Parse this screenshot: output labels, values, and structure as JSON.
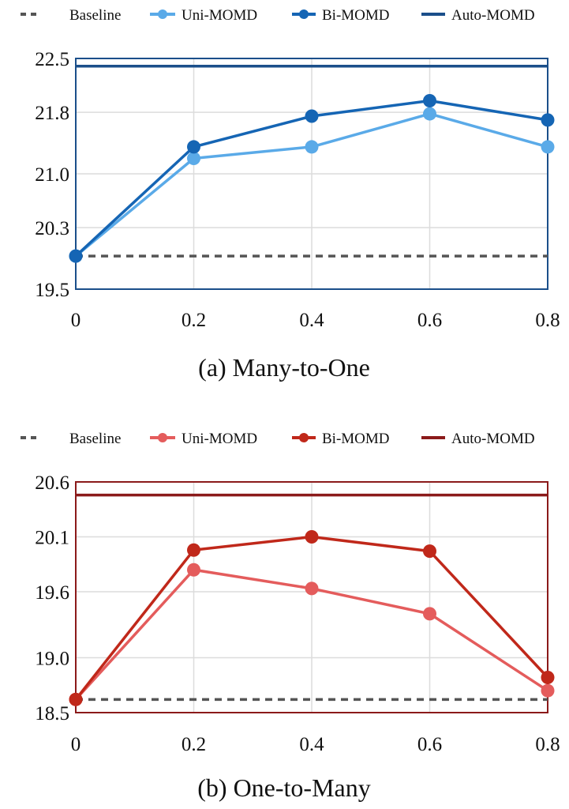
{
  "chart_data": [
    {
      "type": "line",
      "caption": "(a) Many-to-One",
      "x": [
        0,
        0.2,
        0.4,
        0.6,
        0.8
      ],
      "xticks": [
        "0",
        "0.2",
        "0.4",
        "0.6",
        "0.8"
      ],
      "xlim": [
        0,
        0.8
      ],
      "yticks": [
        "19.5",
        "20.3",
        "21.0",
        "21.8",
        "22.5"
      ],
      "ylim": [
        19.5,
        22.5
      ],
      "grid": true,
      "legend_position": "top",
      "series": [
        {
          "name": "Baseline",
          "style": "dashed-hline",
          "color": "#555555",
          "value": 19.93
        },
        {
          "name": "Uni-MOMD",
          "style": "line-marker",
          "color": "#5AAAE8",
          "values": [
            19.93,
            21.2,
            21.35,
            21.78,
            21.35
          ]
        },
        {
          "name": "Bi-MOMD",
          "style": "line-marker",
          "color": "#1565B4",
          "values": [
            19.93,
            21.35,
            21.75,
            21.95,
            21.7
          ]
        },
        {
          "name": "Auto-MOMD",
          "style": "solid-hline",
          "color": "#1B4F8A",
          "value": 22.4
        }
      ]
    },
    {
      "type": "line",
      "caption": "(b) One-to-Many",
      "x": [
        0,
        0.2,
        0.4,
        0.6,
        0.8
      ],
      "xticks": [
        "0",
        "0.2",
        "0.4",
        "0.6",
        "0.8"
      ],
      "xlim": [
        0,
        0.8
      ],
      "yticks": [
        "18.5",
        "19.0",
        "19.6",
        "20.1",
        "20.6"
      ],
      "ylim": [
        18.5,
        20.6
      ],
      "grid": true,
      "legend_position": "top",
      "series": [
        {
          "name": "Baseline",
          "style": "dashed-hline",
          "color": "#555555",
          "value": 18.62
        },
        {
          "name": "Uni-MOMD",
          "style": "line-marker",
          "color": "#E45C5C",
          "values": [
            18.62,
            19.8,
            19.63,
            19.4,
            18.7
          ]
        },
        {
          "name": "Bi-MOMD",
          "style": "line-marker",
          "color": "#C0281A",
          "values": [
            18.62,
            19.98,
            20.1,
            19.97,
            18.82
          ]
        },
        {
          "name": "Auto-MOMD",
          "style": "solid-hline",
          "color": "#8B1A1A",
          "value": 20.48
        }
      ]
    }
  ]
}
